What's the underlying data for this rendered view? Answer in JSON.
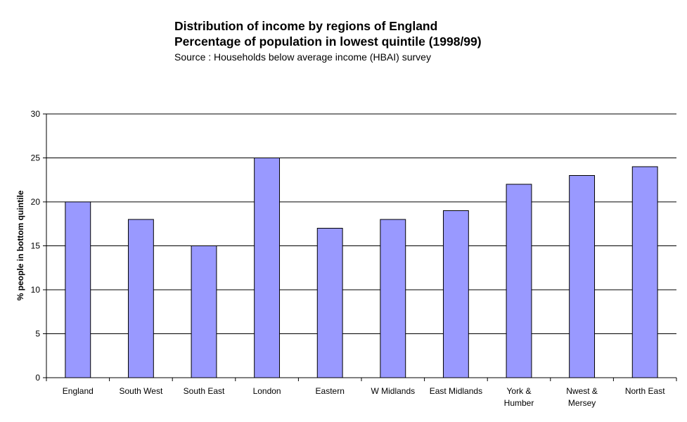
{
  "chart_data": {
    "type": "bar",
    "title": "Distribution of income by regions of England",
    "subtitle": "Percentage of population in lowest quintile (1998/99)",
    "source": "Source : Households below average income (HBAI) survey",
    "xlabel": "",
    "ylabel": "% people in bottom quintile",
    "categories": [
      [
        "England"
      ],
      [
        "South West"
      ],
      [
        "South East"
      ],
      [
        "London"
      ],
      [
        "Eastern"
      ],
      [
        "W Midlands"
      ],
      [
        "East Midlands"
      ],
      [
        "York &",
        "Humber"
      ],
      [
        "Nwest &",
        "Mersey"
      ],
      [
        "North East"
      ]
    ],
    "values": [
      20,
      18,
      15,
      25,
      17,
      18,
      19,
      22,
      23,
      24
    ],
    "ylim": [
      0,
      30
    ],
    "yticks": [
      0,
      5,
      10,
      15,
      20,
      25,
      30
    ],
    "grid": true,
    "legend": "none",
    "colors": {
      "bar_fill": "#9999ff",
      "bar_stroke": "#000000",
      "grid": "#000000"
    }
  }
}
